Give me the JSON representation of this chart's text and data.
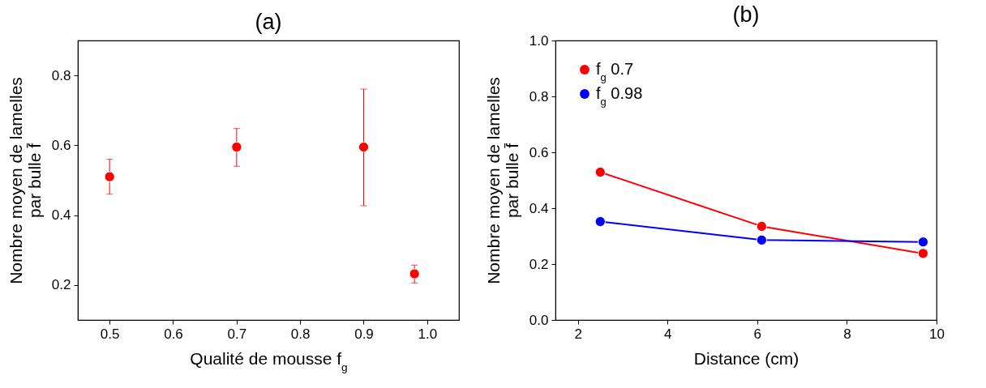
{
  "chart_data": [
    {
      "type": "scatter",
      "title": "(a)",
      "xlabel": "Qualité de mousse f$_{g}$",
      "ylabel": "Nombre moyen de lamelles\npar bulle f̄",
      "xlim": [
        0.45,
        1.05
      ],
      "ylim": [
        0.1,
        0.9
      ],
      "xticks": [
        0.5,
        0.6,
        0.7,
        0.8,
        0.9,
        {
          "value": 1,
          "label": "1.0"
        }
      ],
      "yticks": [
        0.2,
        0.4,
        0.6,
        0.8
      ],
      "grid": false,
      "marker": "circle",
      "x": [
        0.5,
        0.7,
        0.9,
        0.98
      ],
      "series": [
        {
          "color": "#ff0000",
          "values": [
            0.51,
            0.595,
            0.595,
            0.232
          ],
          "errors": [
            [
              0.46,
              0.56
            ],
            [
              0.54,
              0.648
            ],
            [
              0.427,
              0.761
            ],
            [
              0.206,
              0.257
            ]
          ]
        }
      ]
    },
    {
      "type": "line",
      "title": "(b)",
      "xlabel": "Distance (cm)",
      "ylabel": "Nombre moyen de lamelles\npar bulle f̄",
      "xlim": [
        1.5,
        10
      ],
      "ylim": [
        0,
        1
      ],
      "xticks": [
        2,
        4,
        6,
        8,
        10
      ],
      "yticks": [
        {
          "value": 0,
          "label": "0.0"
        },
        0.2,
        0.4,
        0.6,
        0.8,
        {
          "value": 1,
          "label": "1.0"
        }
      ],
      "grid": false,
      "marker": "circle",
      "line_style": "solid",
      "legend": "top left",
      "x": [
        2.5,
        6.1,
        9.7
      ],
      "series": [
        {
          "name": "f$_{g}$ 0.7",
          "color": "#ff0000",
          "values": [
            0.529,
            0.335,
            0.238
          ]
        },
        {
          "name": "f$_{g}$ 0.98",
          "color": "#0000ff",
          "values": [
            0.352,
            0.286,
            0.279
          ]
        }
      ]
    }
  ]
}
